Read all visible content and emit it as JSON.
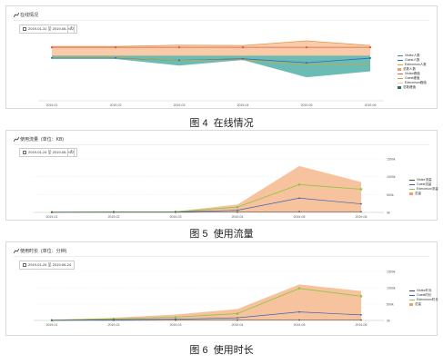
{
  "panels": [
    {
      "title": "在线情况",
      "unit": "",
      "date_range": "2019-01-31 至 2019-06-24",
      "legend": [
        "Visitor人数",
        "Guest人数",
        "Edmonson人数",
        "总数人数",
        "Visitor峰值",
        "Guest峰值",
        "Edmonson峰值",
        "总数峰值"
      ],
      "caption_fig": "图 4",
      "caption_text": "在线情况"
    },
    {
      "title": "使用流量",
      "unit": "(单位：KB)",
      "date_range": "2019-01-24 至 2019-06-24",
      "legend": [
        "Visitor流量",
        "Guest流量",
        "Edmonson流量",
        "总量"
      ],
      "caption_fig": "图 5",
      "caption_text": "使用流量"
    },
    {
      "title": "使用时长",
      "unit": "(单位：分钟)",
      "date_range": "2019-01-24 至 2019-06-24",
      "legend": [
        "Visitor时长",
        "Guest时长",
        "Edmonson时长",
        "总量"
      ],
      "caption_fig": "图 6",
      "caption_text": "使用时长"
    }
  ],
  "chart_data": [
    {
      "type": "area",
      "categories": [
        "2019-01",
        "2019-02",
        "2019-03",
        "2019-04",
        "2019-05",
        "2019-06"
      ],
      "series": [
        {
          "name": "总数峰值",
          "values": [
            3.2,
            3.2,
            3.6,
            3.5,
            5.0,
            3.5
          ]
        },
        {
          "name": "Visitor峰值",
          "values": [
            2.9,
            2.9,
            2.9,
            2.9,
            2.9,
            2.9
          ]
        },
        {
          "name": "Edmonson人数",
          "values": [
            -0.4,
            -0.4,
            -1.3,
            -1.1,
            -2.8,
            -2.6
          ]
        },
        {
          "name": "Guest人数",
          "values": [
            -0.5,
            -0.5,
            -1.3,
            -0.8,
            -2.1,
            -0.6
          ]
        },
        {
          "name": "总数人数",
          "values": [
            -0.9,
            -0.9,
            -3.0,
            -1.2,
            -6.8,
            -4.9
          ]
        }
      ],
      "colors": {
        "total_band": "#5ab5ad",
        "peak_band": "#f7c6a0",
        "peak_line": "#e8974a",
        "visitor": "#e05a47",
        "guest": "#3a63b0",
        "edmonson": "#c9a83c"
      }
    },
    {
      "type": "area",
      "categories": [
        "2019-01",
        "2019-02",
        "2019-03",
        "2019-04",
        "2019-05",
        "2019-06"
      ],
      "ylabels": [
        "0k",
        "500k",
        "1000k",
        "1500k"
      ],
      "ylim": [
        0,
        1500
      ],
      "series": [
        {
          "name": "总量",
          "values": [
            10,
            20,
            30,
            220,
            1300,
            850
          ]
        },
        {
          "name": "Edmonson流量",
          "values": [
            8,
            15,
            20,
            150,
            780,
            650
          ]
        },
        {
          "name": "Guest流量",
          "values": [
            5,
            8,
            10,
            60,
            400,
            240
          ]
        },
        {
          "name": "Visitor流量",
          "values": [
            2,
            3,
            4,
            8,
            20,
            20
          ]
        }
      ],
      "colors": {
        "total": "#f7c09a",
        "edmonson": "#8dc63f",
        "guest": "#3a63b0",
        "visitor": "#444444"
      }
    },
    {
      "type": "area",
      "categories": [
        "2019-01",
        "2019-02",
        "2019-03",
        "2019-04",
        "2019-05",
        "2019-06"
      ],
      "ylabels": [
        "0k",
        "500k",
        "1000k",
        "1500k"
      ],
      "ylim": [
        0,
        1500
      ],
      "series": [
        {
          "name": "总量",
          "values": [
            10,
            80,
            180,
            350,
            1100,
            900
          ]
        },
        {
          "name": "Edmonson时长",
          "values": [
            8,
            50,
            100,
            210,
            980,
            740
          ]
        },
        {
          "name": "Guest时长",
          "values": [
            4,
            20,
            40,
            80,
            260,
            170
          ]
        },
        {
          "name": "Visitor时长",
          "values": [
            2,
            4,
            6,
            8,
            15,
            15
          ]
        }
      ],
      "colors": {
        "total": "#f7c09a",
        "edmonson": "#8dc63f",
        "guest": "#3a63b0",
        "visitor": "#444444"
      }
    }
  ]
}
